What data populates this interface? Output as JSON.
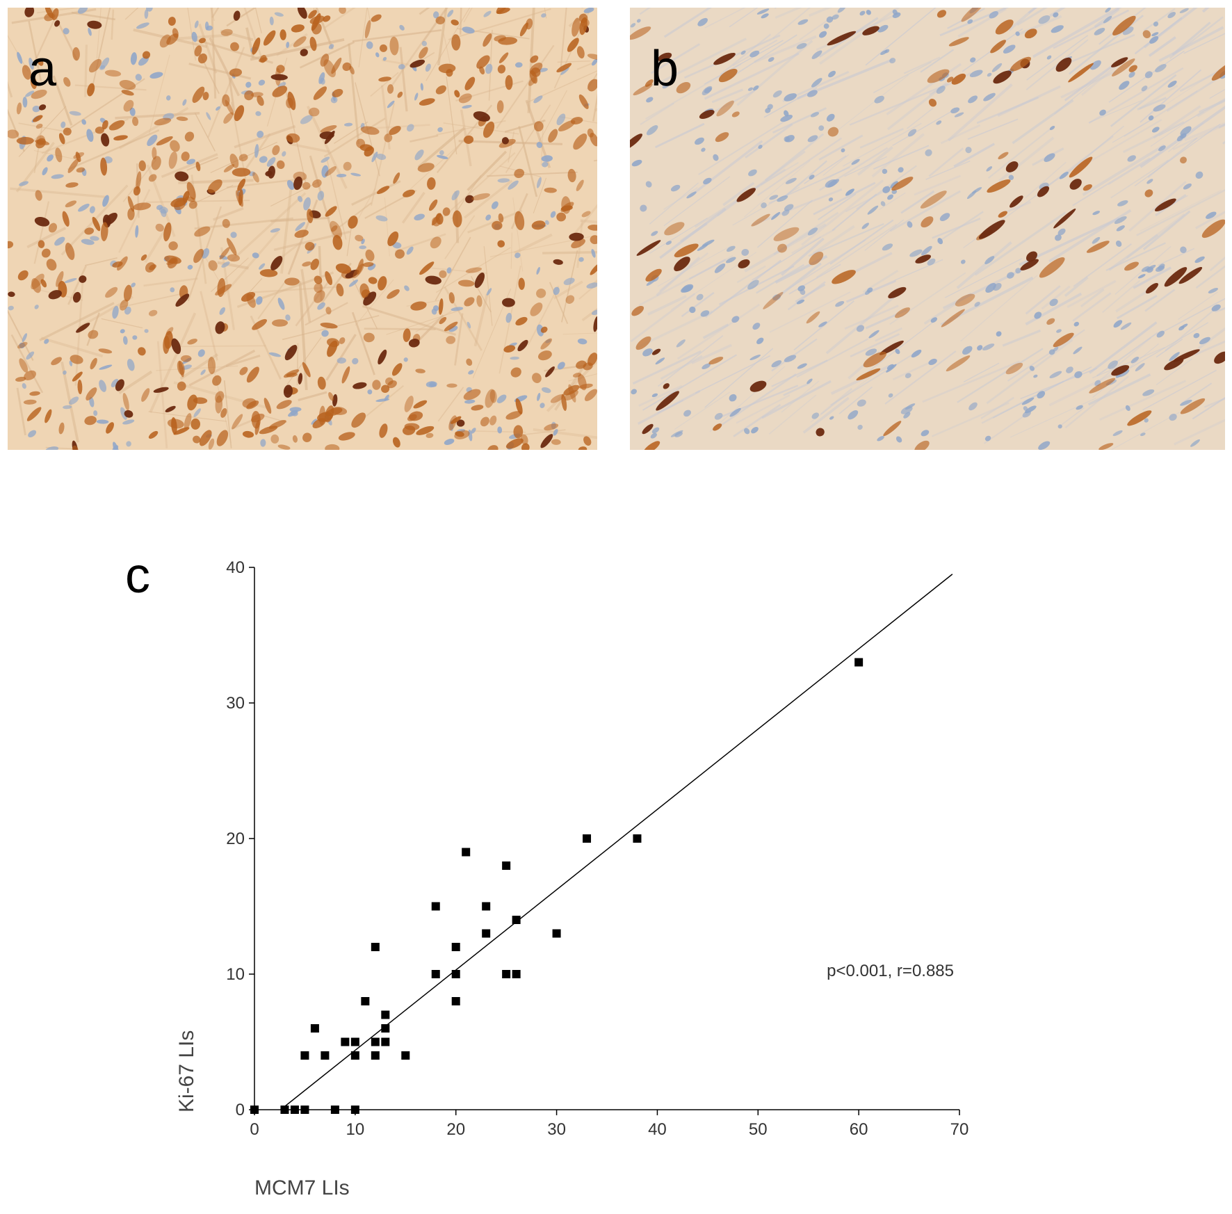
{
  "panels": {
    "a": {
      "label": "a"
    },
    "b": {
      "label": "b"
    },
    "c": {
      "label": "c"
    }
  },
  "colors": {
    "stain_a_background": "#efd5b4",
    "stain_b_background": "#ead9c4",
    "nucleus_positive": "#b8621e",
    "nucleus_strong": "#6b2a10",
    "nucleus_negative": "#8fa6c9",
    "marker": "#000000",
    "axis": "#000000"
  },
  "chart_data": {
    "type": "scatter",
    "xlabel": "MCM7 LIs",
    "ylabel": "Ki-67 LIs",
    "xlim": [
      0,
      70
    ],
    "ylim": [
      0,
      40
    ],
    "xticks": [
      0,
      10,
      20,
      30,
      40,
      50,
      60,
      70
    ],
    "yticks": [
      0,
      10,
      20,
      30,
      40
    ],
    "annotation": "p<0.001, r=0.885",
    "grid": false,
    "points": [
      {
        "x": 0,
        "y": 0
      },
      {
        "x": 3,
        "y": 0
      },
      {
        "x": 4,
        "y": 0
      },
      {
        "x": 5,
        "y": 0
      },
      {
        "x": 8,
        "y": 0
      },
      {
        "x": 10,
        "y": 0
      },
      {
        "x": 5,
        "y": 4
      },
      {
        "x": 7,
        "y": 4
      },
      {
        "x": 10,
        "y": 4
      },
      {
        "x": 12,
        "y": 4
      },
      {
        "x": 15,
        "y": 4
      },
      {
        "x": 9,
        "y": 5
      },
      {
        "x": 10,
        "y": 5
      },
      {
        "x": 12,
        "y": 5
      },
      {
        "x": 13,
        "y": 5
      },
      {
        "x": 6,
        "y": 6
      },
      {
        "x": 13,
        "y": 6
      },
      {
        "x": 13,
        "y": 7
      },
      {
        "x": 11,
        "y": 8
      },
      {
        "x": 20,
        "y": 8
      },
      {
        "x": 18,
        "y": 10
      },
      {
        "x": 20,
        "y": 10
      },
      {
        "x": 25,
        "y": 10
      },
      {
        "x": 26,
        "y": 10
      },
      {
        "x": 12,
        "y": 12
      },
      {
        "x": 20,
        "y": 12
      },
      {
        "x": 23,
        "y": 13
      },
      {
        "x": 30,
        "y": 13
      },
      {
        "x": 26,
        "y": 14
      },
      {
        "x": 18,
        "y": 15
      },
      {
        "x": 23,
        "y": 15
      },
      {
        "x": 25,
        "y": 18
      },
      {
        "x": 21,
        "y": 19
      },
      {
        "x": 33,
        "y": 20
      },
      {
        "x": 38,
        "y": 20
      },
      {
        "x": 60,
        "y": 33
      }
    ],
    "regression_line": {
      "x": [
        2.6,
        69.3
      ],
      "y": [
        0,
        39.5
      ]
    }
  }
}
